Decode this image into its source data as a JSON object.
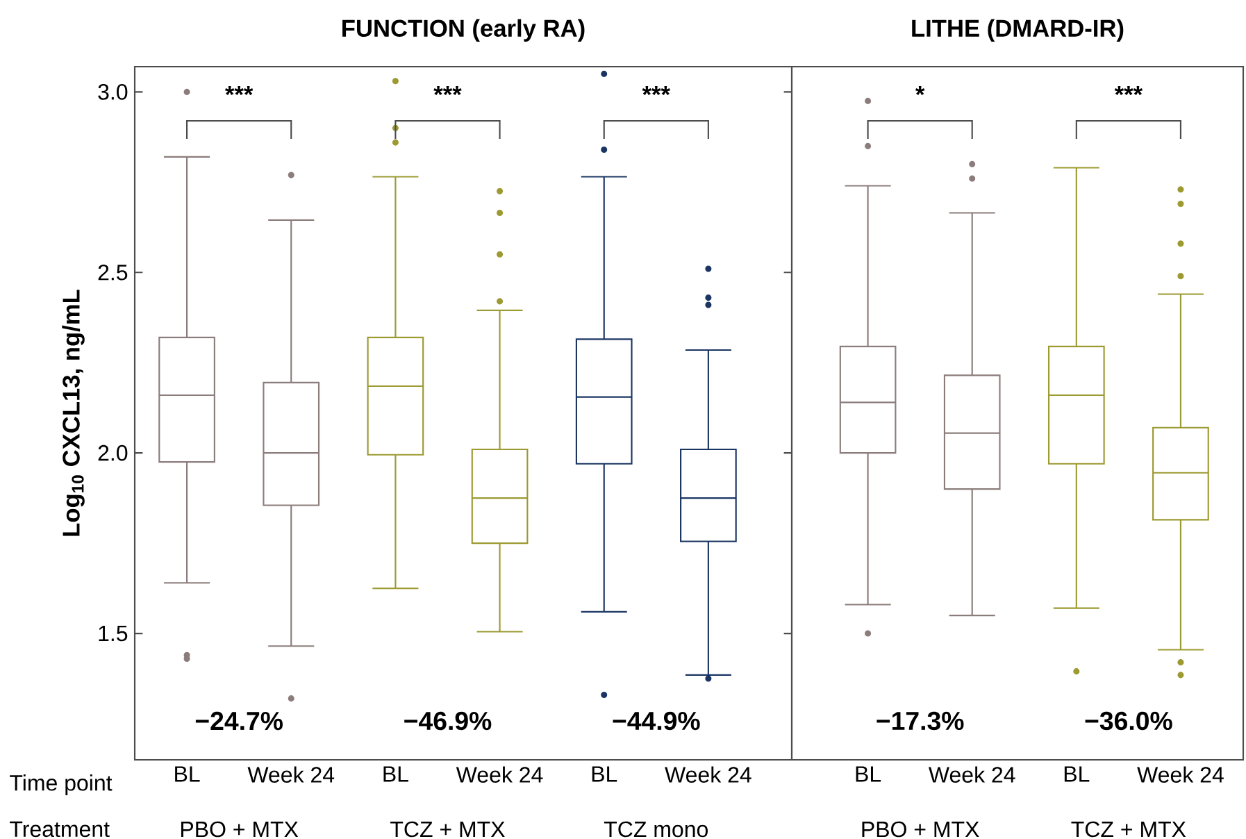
{
  "chart_data": [
    {
      "type": "box",
      "title": "FUNCTION (early RA)",
      "ylabel": "Log$_{10}$ CXCL13, ng/mL",
      "categories": [
        "BL",
        "Week 24",
        "BL",
        "Week 24",
        "BL",
        "Week 24"
      ],
      "boxes": [
        {
          "low": 1.64,
          "q1": 1.975,
          "median": 2.16,
          "q3": 2.32,
          "high": 2.82,
          "outliers": [
            3.0,
            1.44,
            1.43
          ]
        },
        {
          "low": 1.465,
          "q1": 1.855,
          "median": 2.0,
          "q3": 2.195,
          "high": 2.645,
          "outliers": [
            2.77,
            1.32
          ]
        },
        {
          "low": 1.625,
          "q1": 1.995,
          "median": 2.185,
          "q3": 2.32,
          "high": 2.765,
          "outliers": [
            3.03,
            2.9,
            2.86
          ]
        },
        {
          "low": 1.505,
          "q1": 1.75,
          "median": 1.875,
          "q3": 2.01,
          "high": 2.395,
          "outliers": [
            2.725,
            2.665,
            2.55,
            2.42
          ]
        },
        {
          "low": 1.56,
          "q1": 1.97,
          "median": 2.155,
          "q3": 2.315,
          "high": 2.765,
          "outliers": [
            3.05,
            2.84,
            1.33
          ]
        },
        {
          "low": 1.385,
          "q1": 1.755,
          "median": 1.875,
          "q3": 2.01,
          "high": 2.285,
          "outliers": [
            2.51,
            2.43,
            2.41,
            1.375
          ]
        }
      ],
      "colors": [
        "#8b7d7b",
        "#8b7d7b",
        "#9c9a31",
        "#9c9a31",
        "#1b3563",
        "#1b3563"
      ],
      "ylim": [
        1.15,
        3.07
      ],
      "yticks": [
        {
          "value": 1.5,
          "label": "1.5"
        },
        {
          "value": 2,
          "label": "2.0"
        },
        {
          "value": 2.5,
          "label": "2.5"
        },
        {
          "value": 3,
          "label": "3.0"
        }
      ],
      "annotations": [
        "***",
        "***",
        "***",
        "−24.7%",
        "−46.9%",
        "−44.9%",
        "Time point",
        "Treatment",
        "PBO + MTX",
        "TCZ + MTX",
        "TCZ mono"
      ]
    },
    {
      "type": "box",
      "title": "LITHE (DMARD-IR)",
      "categories": [
        "BL",
        "Week 24",
        "BL",
        "Week 24"
      ],
      "boxes": [
        {
          "low": 1.58,
          "q1": 2.0,
          "median": 2.14,
          "q3": 2.295,
          "high": 2.74,
          "outliers": [
            2.975,
            2.85,
            1.5
          ]
        },
        {
          "low": 1.55,
          "q1": 1.9,
          "median": 2.055,
          "q3": 2.215,
          "high": 2.665,
          "outliers": [
            2.8,
            2.76
          ]
        },
        {
          "low": 1.57,
          "q1": 1.97,
          "median": 2.16,
          "q3": 2.295,
          "high": 2.79,
          "outliers": [
            1.395
          ]
        },
        {
          "low": 1.455,
          "q1": 1.815,
          "median": 1.945,
          "q3": 2.07,
          "high": 2.44,
          "outliers": [
            2.73,
            2.69,
            2.58,
            2.49,
            1.42,
            1.385
          ]
        }
      ],
      "colors": [
        "#8b7d7b",
        "#8b7d7b",
        "#9c9a31",
        "#9c9a31"
      ],
      "ylim": [
        1.15,
        3.07
      ],
      "tick_labels": "x",
      "annotations": [
        "*",
        "***",
        "−17.3%",
        "−36.0%",
        "PBO + MTX",
        "TCZ + MTX"
      ]
    }
  ]
}
